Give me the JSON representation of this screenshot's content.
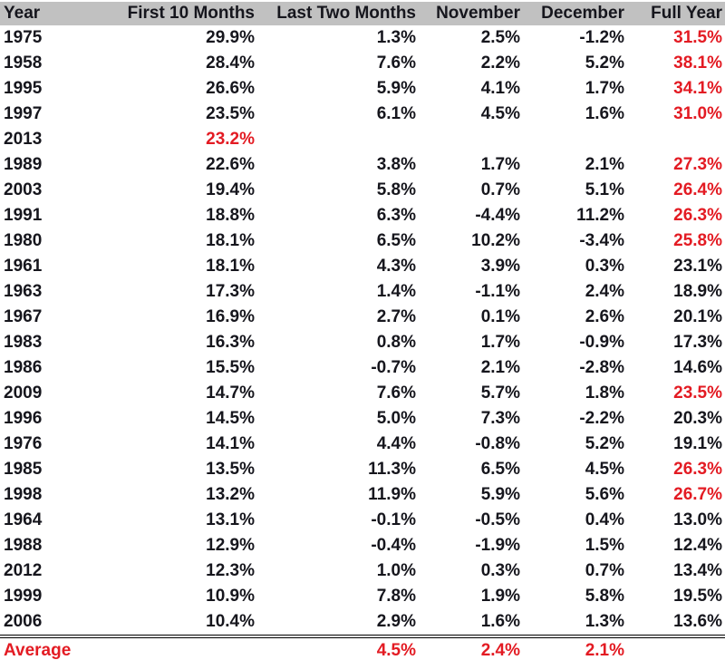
{
  "colors": {
    "header_bg": "#c1c1c1",
    "body_text": "#16161d",
    "highlight_red": "#e31b23",
    "divider": "#000000",
    "background": "#ffffff"
  },
  "chart_data": {
    "type": "table",
    "columns": [
      "Year",
      "First 10 Months",
      "Last Two Months",
      "November",
      "December",
      "Full Year"
    ],
    "rows": [
      {
        "cells": [
          "1975",
          "29.9%",
          "1.3%",
          "2.5%",
          "-1.2%",
          "31.5%"
        ],
        "red_cells": [
          5
        ]
      },
      {
        "cells": [
          "1958",
          "28.4%",
          "7.6%",
          "2.2%",
          "5.2%",
          "38.1%"
        ],
        "red_cells": [
          5
        ]
      },
      {
        "cells": [
          "1995",
          "26.6%",
          "5.9%",
          "4.1%",
          "1.7%",
          "34.1%"
        ],
        "red_cells": [
          5
        ]
      },
      {
        "cells": [
          "1997",
          "23.5%",
          "6.1%",
          "4.5%",
          "1.6%",
          "31.0%"
        ],
        "red_cells": [
          5
        ]
      },
      {
        "cells": [
          "2013",
          "23.2%",
          "",
          "",
          "",
          ""
        ],
        "red_cells": [
          1
        ]
      },
      {
        "cells": [
          "1989",
          "22.6%",
          "3.8%",
          "1.7%",
          "2.1%",
          "27.3%"
        ],
        "red_cells": [
          5
        ]
      },
      {
        "cells": [
          "2003",
          "19.4%",
          "5.8%",
          "0.7%",
          "5.1%",
          "26.4%"
        ],
        "red_cells": [
          5
        ]
      },
      {
        "cells": [
          "1991",
          "18.8%",
          "6.3%",
          "-4.4%",
          "11.2%",
          "26.3%"
        ],
        "red_cells": [
          5
        ]
      },
      {
        "cells": [
          "1980",
          "18.1%",
          "6.5%",
          "10.2%",
          "-3.4%",
          "25.8%"
        ],
        "red_cells": [
          5
        ]
      },
      {
        "cells": [
          "1961",
          "18.1%",
          "4.3%",
          "3.9%",
          "0.3%",
          "23.1%"
        ],
        "red_cells": []
      },
      {
        "cells": [
          "1963",
          "17.3%",
          "1.4%",
          "-1.1%",
          "2.4%",
          "18.9%"
        ],
        "red_cells": []
      },
      {
        "cells": [
          "1967",
          "16.9%",
          "2.7%",
          "0.1%",
          "2.6%",
          "20.1%"
        ],
        "red_cells": []
      },
      {
        "cells": [
          "1983",
          "16.3%",
          "0.8%",
          "1.7%",
          "-0.9%",
          "17.3%"
        ],
        "red_cells": []
      },
      {
        "cells": [
          "1986",
          "15.5%",
          "-0.7%",
          "2.1%",
          "-2.8%",
          "14.6%"
        ],
        "red_cells": []
      },
      {
        "cells": [
          "2009",
          "14.7%",
          "7.6%",
          "5.7%",
          "1.8%",
          "23.5%"
        ],
        "red_cells": [
          5
        ]
      },
      {
        "cells": [
          "1996",
          "14.5%",
          "5.0%",
          "7.3%",
          "-2.2%",
          "20.3%"
        ],
        "red_cells": []
      },
      {
        "cells": [
          "1976",
          "14.1%",
          "4.4%",
          "-0.8%",
          "5.2%",
          "19.1%"
        ],
        "red_cells": []
      },
      {
        "cells": [
          "1985",
          "13.5%",
          "11.3%",
          "6.5%",
          "4.5%",
          "26.3%"
        ],
        "red_cells": [
          5
        ]
      },
      {
        "cells": [
          "1998",
          "13.2%",
          "11.9%",
          "5.9%",
          "5.6%",
          "26.7%"
        ],
        "red_cells": [
          5
        ]
      },
      {
        "cells": [
          "1964",
          "13.1%",
          "-0.1%",
          "-0.5%",
          "0.4%",
          "13.0%"
        ],
        "red_cells": []
      },
      {
        "cells": [
          "1988",
          "12.9%",
          "-0.4%",
          "-1.9%",
          "1.5%",
          "12.4%"
        ],
        "red_cells": []
      },
      {
        "cells": [
          "2012",
          "12.3%",
          "1.0%",
          "0.3%",
          "0.7%",
          "13.4%"
        ],
        "red_cells": []
      },
      {
        "cells": [
          "1999",
          "10.9%",
          "7.8%",
          "1.9%",
          "5.8%",
          "19.5%"
        ],
        "red_cells": []
      },
      {
        "cells": [
          "2006",
          "10.4%",
          "2.9%",
          "1.6%",
          "1.3%",
          "13.6%"
        ],
        "red_cells": []
      },
      {
        "cells": [
          "Average",
          "",
          "4.5%",
          "2.4%",
          "2.1%",
          ""
        ],
        "red_cells": [
          0,
          1,
          2,
          3,
          4,
          5
        ],
        "divider": true
      }
    ]
  }
}
